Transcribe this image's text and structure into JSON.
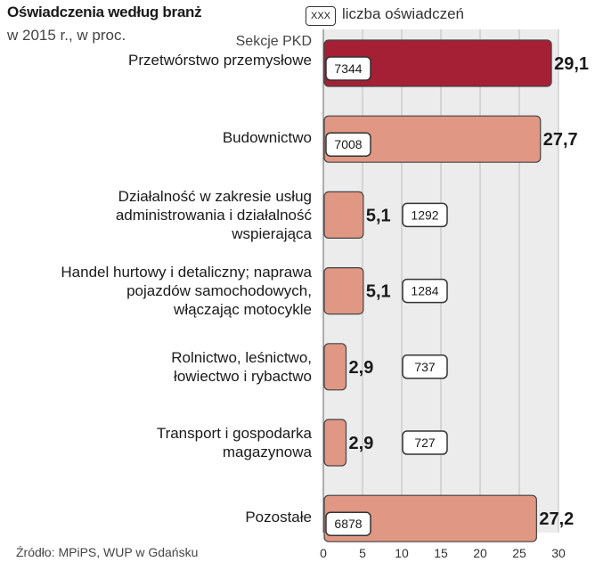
{
  "chart_data": {
    "type": "bar",
    "orientation": "horizontal",
    "title": "Oświadczenia według branż",
    "subtitle": "w 2015 r., w proc.",
    "axis_title": "Sekcje PKD",
    "legend": {
      "box_text": "XXX",
      "label": "liczba oświadczeń"
    },
    "source": "Źródło: MPiPS, WUP w Gdańsku",
    "xlim": [
      0,
      30
    ],
    "ticks": [
      "0",
      "5",
      "10",
      "15",
      "20",
      "25",
      "30"
    ],
    "categories": [
      [
        "Przetwórstwo przemysłowe"
      ],
      [
        "Budownictwo"
      ],
      [
        "Działalność w zakresie usług",
        "administrowania i działalność",
        "wspierająca"
      ],
      [
        "Handel hurtowy i detaliczny; naprawa",
        "pojazdów samochodowych,",
        "włączając motocykle"
      ],
      [
        "Rolnictwo, leśnictwo,",
        "łowiectwo i rybactwo"
      ],
      [
        "Transport i gospodarka",
        "magazynowa"
      ],
      [
        "Pozostałe"
      ]
    ],
    "values": [
      29.1,
      27.7,
      5.1,
      5.1,
      2.9,
      2.9,
      27.2
    ],
    "value_labels": [
      "29,1",
      "27,7",
      "5,1",
      "5,1",
      "2,9",
      "2,9",
      "27,2"
    ],
    "counts": [
      "7344",
      "7008",
      "1292",
      "1284",
      "737",
      "727",
      "6878"
    ],
    "colors": {
      "highlight": "#a51f35",
      "bar": "#e09784",
      "bar_stroke": "#444444",
      "plot_bg": "#ececec",
      "grid": "#bdbdbd"
    }
  }
}
